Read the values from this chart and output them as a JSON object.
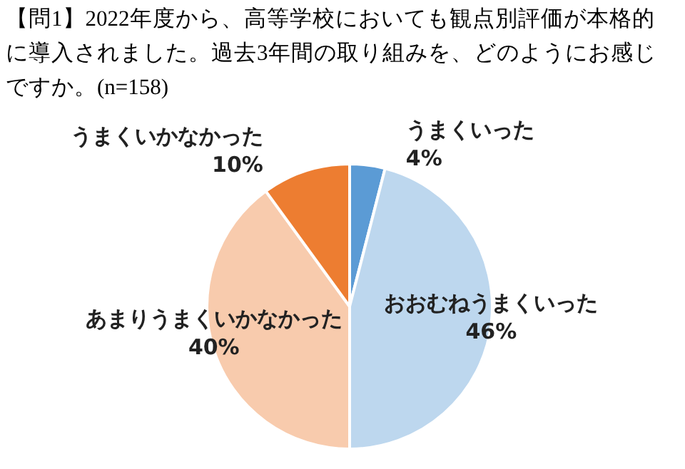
{
  "chart_data": {
    "type": "pie",
    "title": "【問1】2022年度から、高等学校においても観点別評価が本格的に導入されました。過去3年間の取り組みを、どのようにお感じですか。(n=158)",
    "categories": [
      "うまくいった",
      "おおむねうまくいった",
      "あまりうまくいかなかった",
      "うまくいかなかった"
    ],
    "values": [
      4,
      46,
      40,
      10
    ],
    "value_labels": [
      "4%",
      "46%",
      "40%",
      "10%"
    ],
    "colors": [
      "#5b9bd5",
      "#bdd7ee",
      "#f8cbad",
      "#ed7d31"
    ]
  }
}
